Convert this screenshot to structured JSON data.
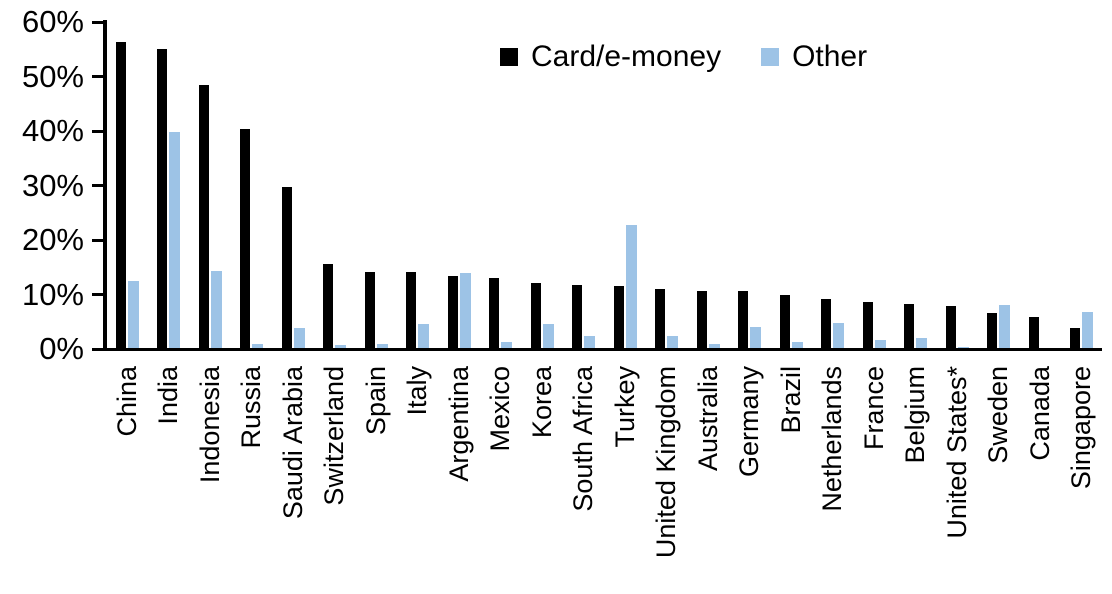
{
  "chart_data": {
    "type": "bar",
    "title": "",
    "xlabel": "",
    "ylabel": "",
    "ylim": [
      0,
      60
    ],
    "ytick_step": 10,
    "ytick_labels": [
      "0%",
      "10%",
      "20%",
      "30%",
      "40%",
      "50%",
      "60%"
    ],
    "grid": false,
    "legend_position": "top-center",
    "categories": [
      "China",
      "India",
      "Indonesia",
      "Russia",
      "Saudi Arabia",
      "Switzerland",
      "Spain",
      "Italy",
      "Argentina",
      "Mexico",
      "Korea",
      "South Africa",
      "Turkey",
      "United Kingdom",
      "Australia",
      "Germany",
      "Brazil",
      "Netherlands",
      "France",
      "Belgium",
      "United States*",
      "Sweden",
      "Canada",
      "Singapore"
    ],
    "series": [
      {
        "name": "Card/e-money",
        "color": "#000000",
        "values": [
          56.3,
          55.1,
          48.4,
          40.4,
          29.8,
          15.6,
          14.1,
          14.1,
          13.4,
          13.0,
          12.2,
          11.7,
          11.6,
          11.1,
          10.7,
          10.6,
          10.0,
          9.2,
          8.7,
          8.2,
          7.9,
          6.6,
          5.9,
          3.9
        ]
      },
      {
        "name": "Other",
        "color": "#9DC3E6",
        "values": [
          12.4,
          39.8,
          14.4,
          0.9,
          3.8,
          0.8,
          1.0,
          4.6,
          13.9,
          1.3,
          4.6,
          2.4,
          22.7,
          2.4,
          1.0,
          4.0,
          1.2,
          4.8,
          1.6,
          2.1,
          0.4,
          8.1,
          0.0,
          6.8
        ]
      }
    ]
  }
}
